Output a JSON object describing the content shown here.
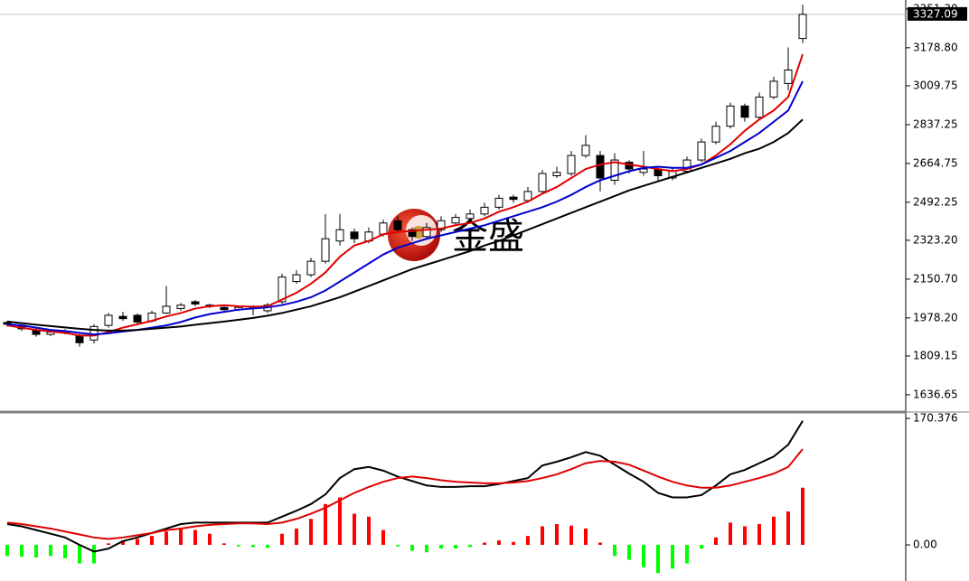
{
  "chart_data": [
    {
      "type": "candlestick",
      "open": [
        1958,
        1945,
        1925,
        1905,
        1918,
        1900,
        1880,
        1945,
        1985,
        1990,
        1965,
        2000,
        2020,
        2050,
        2035,
        2025,
        2015,
        2028,
        2010,
        2050,
        2140,
        2170,
        2230,
        2320,
        2360,
        2320,
        2350,
        2410,
        2370,
        2340,
        2370,
        2400,
        2420,
        2440,
        2470,
        2515,
        2500,
        2540,
        2610,
        2620,
        2700,
        2700,
        2590,
        2670,
        2625,
        2640,
        2600,
        2630,
        2680,
        2760,
        2830,
        2920,
        2870,
        2960,
        3020,
        3220
      ],
      "high": [
        1965,
        1950,
        1932,
        1925,
        1928,
        1908,
        1950,
        2000,
        2005,
        1998,
        2010,
        2120,
        2045,
        2058,
        2042,
        2035,
        2032,
        2035,
        2045,
        2175,
        2190,
        2245,
        2440,
        2440,
        2375,
        2380,
        2415,
        2430,
        2380,
        2400,
        2430,
        2440,
        2460,
        2490,
        2525,
        2525,
        2560,
        2635,
        2650,
        2720,
        2790,
        2720,
        2710,
        2680,
        2720,
        2650,
        2645,
        2695,
        2775,
        2850,
        2935,
        2930,
        2980,
        3050,
        3180,
        3370
      ],
      "low": [
        1940,
        1920,
        1895,
        1898,
        1905,
        1850,
        1865,
        1935,
        1965,
        1952,
        1958,
        1995,
        2010,
        2030,
        2022,
        2005,
        2008,
        1990,
        2000,
        2040,
        2130,
        2160,
        2220,
        2300,
        2310,
        2310,
        2340,
        2360,
        2320,
        2330,
        2360,
        2390,
        2410,
        2430,
        2460,
        2490,
        2490,
        2530,
        2600,
        2610,
        2690,
        2540,
        2570,
        2620,
        2610,
        2590,
        2590,
        2620,
        2670,
        2750,
        2820,
        2850,
        2860,
        2950,
        2990,
        3200
      ],
      "close": [
        1950,
        1930,
        1905,
        1915,
        1912,
        1868,
        1940,
        1990,
        1975,
        1960,
        2000,
        2030,
        2035,
        2040,
        2030,
        2015,
        2025,
        2020,
        2035,
        2160,
        2170,
        2230,
        2330,
        2370,
        2330,
        2360,
        2400,
        2370,
        2340,
        2380,
        2410,
        2425,
        2440,
        2470,
        2510,
        2505,
        2540,
        2620,
        2625,
        2700,
        2745,
        2600,
        2680,
        2640,
        2640,
        2610,
        2630,
        2680,
        2760,
        2830,
        2920,
        2870,
        2960,
        3030,
        3080,
        3327.09
      ],
      "up_color": "#ffffff",
      "down_color": "#000000",
      "series": [
        {
          "color": "#e00000",
          "values": [
            1945,
            1935,
            1925,
            1918,
            1912,
            1900,
            1900,
            1915,
            1935,
            1950,
            1965,
            1985,
            2000,
            2020,
            2030,
            2035,
            2030,
            2028,
            2030,
            2060,
            2090,
            2130,
            2180,
            2250,
            2300,
            2320,
            2350,
            2360,
            2365,
            2370,
            2375,
            2390,
            2400,
            2420,
            2450,
            2470,
            2495,
            2530,
            2560,
            2600,
            2640,
            2660,
            2670,
            2660,
            2650,
            2640,
            2630,
            2640,
            2660,
            2700,
            2750,
            2810,
            2860,
            2900,
            2960,
            3150
          ]
        },
        {
          "color": "#0000d0",
          "values": [
            1950,
            1945,
            1935,
            1925,
            1920,
            1912,
            1905,
            1910,
            1918,
            1925,
            1935,
            1945,
            1960,
            1980,
            1995,
            2005,
            2015,
            2020,
            2025,
            2035,
            2050,
            2070,
            2100,
            2140,
            2180,
            2220,
            2260,
            2290,
            2310,
            2330,
            2345,
            2360,
            2375,
            2390,
            2410,
            2430,
            2450,
            2470,
            2495,
            2525,
            2560,
            2590,
            2610,
            2630,
            2645,
            2650,
            2645,
            2645,
            2660,
            2690,
            2720,
            2760,
            2800,
            2850,
            2900,
            3030
          ]
        },
        {
          "color": "#000000",
          "values": [
            1962,
            1955,
            1948,
            1942,
            1936,
            1930,
            1925,
            1922,
            1922,
            1925,
            1930,
            1935,
            1940,
            1948,
            1955,
            1962,
            1970,
            1978,
            1988,
            2000,
            2015,
            2030,
            2050,
            2070,
            2095,
            2120,
            2145,
            2170,
            2195,
            2215,
            2235,
            2255,
            2275,
            2300,
            2320,
            2345,
            2370,
            2395,
            2420,
            2445,
            2470,
            2495,
            2520,
            2545,
            2565,
            2585,
            2605,
            2625,
            2645,
            2665,
            2685,
            2710,
            2730,
            2760,
            2800,
            2860
          ]
        }
      ],
      "ylim": [
        1564,
        3391
      ],
      "yticks": [
        1636.65,
        1809.15,
        {
          "value": 1978.2,
          "label": "1978.20"
        },
        {
          "value": 2150.7,
          "label": "2150.70"
        },
        {
          "value": 2323.2,
          "label": "2323.20"
        },
        2492.25,
        2664.75,
        2837.25,
        3009.75,
        {
          "value": 3178.8,
          "label": "3178.80"
        },
        {
          "value": 3351.3,
          "label": "3351.30"
        }
      ],
      "watermark": "金盛"
    },
    {
      "type": "macd",
      "series": [
        {
          "color": "#000000",
          "values": [
            28,
            25,
            20,
            15,
            10,
            0,
            -9,
            -5,
            5,
            10,
            16,
            22,
            28,
            30,
            30,
            30,
            30,
            30,
            30,
            38,
            46,
            55,
            68,
            90,
            102,
            105,
            100,
            92,
            86,
            80,
            78,
            78,
            79,
            79,
            82,
            86,
            90,
            107,
            112,
            118,
            125,
            120,
            108,
            96,
            85,
            70,
            64,
            64,
            67,
            80,
            95,
            101,
            110,
            119,
            135,
            167
          ]
        },
        {
          "color": "#e00000",
          "values": [
            30,
            28,
            25,
            22,
            18,
            14,
            10,
            8,
            10,
            13,
            16,
            20,
            22,
            25,
            27,
            28,
            29,
            29,
            28,
            30,
            35,
            42,
            50,
            60,
            70,
            78,
            85,
            90,
            92,
            90,
            87,
            85,
            84,
            83,
            83,
            84,
            86,
            90,
            95,
            102,
            110,
            113,
            112,
            108,
            100,
            92,
            85,
            80,
            77,
            77,
            80,
            85,
            90,
            96,
            105,
            129
          ]
        }
      ],
      "histogram": [
        -15,
        -16,
        -17,
        -15,
        -18,
        -25,
        -25,
        2,
        6,
        8,
        12,
        18,
        22,
        20,
        15,
        2,
        -2,
        -3,
        -4,
        15,
        22,
        35,
        55,
        64,
        42,
        38,
        20,
        -2,
        -8,
        -10,
        -5,
        -5,
        -3,
        3,
        6,
        4,
        12,
        25,
        28,
        26,
        22,
        3,
        -15,
        -20,
        -30,
        -38,
        -32,
        -25,
        -5,
        10,
        30,
        25,
        28,
        38,
        45,
        77
      ],
      "up_color": "#ff0000",
      "down_color": "#00ff00",
      "ylim": [
        -46.2,
        177.7
      ],
      "yticks": [
        {
          "value": 0,
          "label": "0.00"
        },
        170.376
      ]
    }
  ]
}
